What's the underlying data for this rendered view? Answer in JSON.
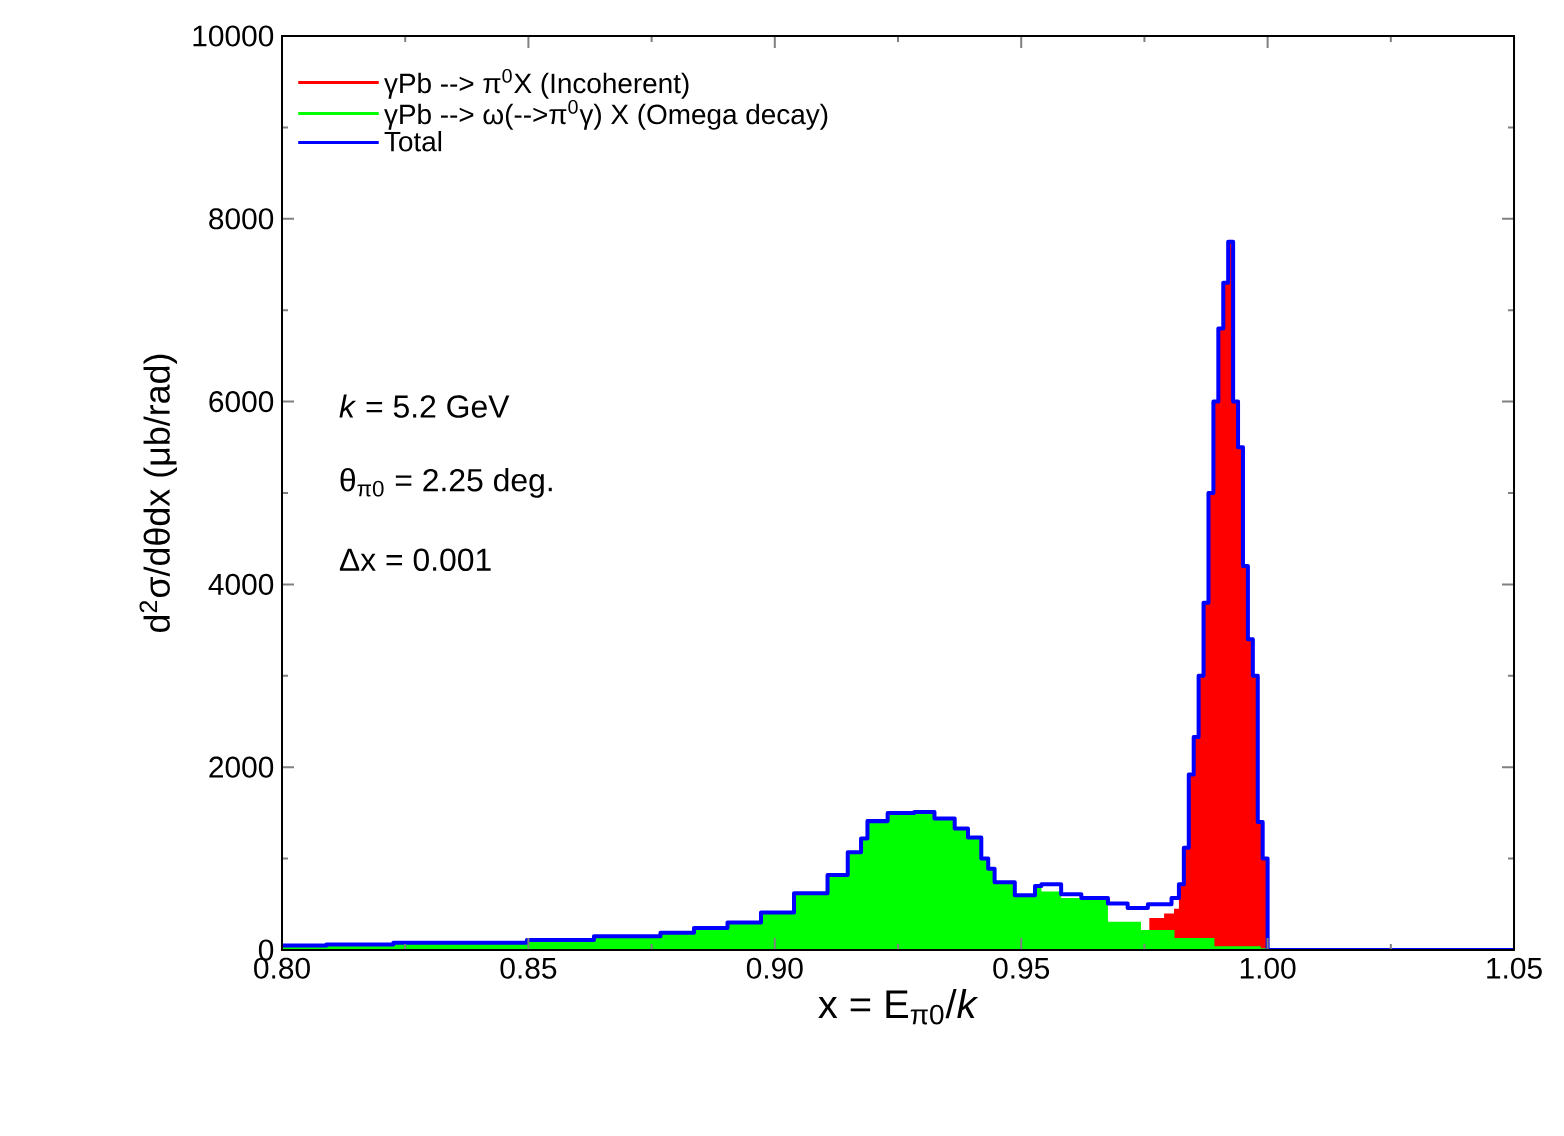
{
  "chart_data": {
    "type": "area",
    "xlabel": "x = E$_{π0}$/*k*",
    "ylabel": "d$^{2}$σ/dθdx (μb/rad)",
    "xlim": [
      0.8,
      1.05
    ],
    "ylim": [
      0,
      10000
    ],
    "xticks": [
      {
        "value": 0.8,
        "label": "0.80"
      },
      {
        "value": 0.85,
        "label": "0.85"
      },
      {
        "value": 0.9,
        "label": "0.90"
      },
      {
        "value": 0.95,
        "label": "0.95"
      },
      {
        "value": 1.0,
        "label": "1.00"
      },
      {
        "value": 1.05,
        "label": "1.05"
      }
    ],
    "yticks": [
      0,
      2000,
      4000,
      6000,
      8000,
      10000
    ],
    "legend": "top left",
    "grid": false,
    "annotations": [
      "*k* = 5.2 GeV",
      "θ$_{π0}$ = 2.25 deg.",
      "Δx = 0.001"
    ],
    "series": [
      {
        "name": "γPb --> π$^{0}$X (Incoherent)",
        "color": "#ff0000",
        "x": [
          0.976,
          0.979,
          0.981,
          0.982,
          0.983,
          0.984,
          0.985,
          0.986,
          0.987,
          0.988,
          0.989,
          0.99,
          0.991,
          0.992,
          0.993,
          0.994,
          0.995,
          0.996,
          0.997,
          0.998,
          0.999,
          1.0
        ],
        "values": [
          350,
          400,
          450,
          720,
          1120,
          1920,
          2330,
          3000,
          3800,
          5000,
          6000,
          6800,
          7300,
          7750,
          6000,
          5500,
          4200,
          3400,
          3000,
          1400,
          1000,
          0
        ]
      },
      {
        "name": "γPb --> ω(-->π$^{0}$γ) X (Omega decay)",
        "color": "#00ff00",
        "x": [
          0.8,
          0.809,
          0.8226,
          0.8497,
          0.8633,
          0.8768,
          0.8836,
          0.8904,
          0.8972,
          0.9039,
          0.9107,
          0.9148,
          0.9175,
          0.9188,
          0.9229,
          0.9283,
          0.9324,
          0.9365,
          0.9392,
          0.9419,
          0.9433,
          0.9446,
          0.9487,
          0.9528,
          0.9541,
          0.9581,
          0.9676,
          0.9743,
          0.9811,
          0.9892,
          0.9986,
          1.0
        ],
        "values": [
          50,
          60,
          80,
          110,
          150,
          190,
          240,
          300,
          410,
          620,
          820,
          1070,
          1220,
          1410,
          1500,
          1510,
          1440,
          1330,
          1230,
          1000,
          890,
          740,
          600,
          700,
          640,
          570,
          310,
          220,
          130,
          40,
          20,
          0
        ]
      },
      {
        "name": "Total",
        "color": "#0000ff",
        "type": "step",
        "marker": "none",
        "x": [
          0.8,
          0.809,
          0.8226,
          0.8497,
          0.8633,
          0.8768,
          0.8836,
          0.8904,
          0.8972,
          0.9039,
          0.9107,
          0.9148,
          0.9175,
          0.9188,
          0.9229,
          0.9283,
          0.9324,
          0.9365,
          0.9392,
          0.9419,
          0.9433,
          0.9446,
          0.9487,
          0.9528,
          0.9541,
          0.9581,
          0.9622,
          0.9676,
          0.9716,
          0.9757,
          0.9805,
          0.982,
          0.983,
          0.984,
          0.985,
          0.986,
          0.987,
          0.988,
          0.989,
          0.99,
          0.991,
          0.992,
          0.993,
          0.994,
          0.995,
          0.996,
          0.997,
          0.998,
          0.999,
          1.0,
          1.05
        ],
        "values": [
          50,
          60,
          80,
          110,
          150,
          190,
          240,
          300,
          410,
          620,
          820,
          1070,
          1220,
          1410,
          1500,
          1510,
          1440,
          1330,
          1230,
          1000,
          890,
          740,
          600,
          700,
          720,
          610,
          570,
          510,
          460,
          500,
          570,
          720,
          1120,
          1920,
          2330,
          3000,
          3800,
          5000,
          6000,
          6800,
          7300,
          7750,
          6000,
          5500,
          4200,
          3400,
          3000,
          1400,
          1000,
          0,
          0
        ]
      }
    ]
  }
}
